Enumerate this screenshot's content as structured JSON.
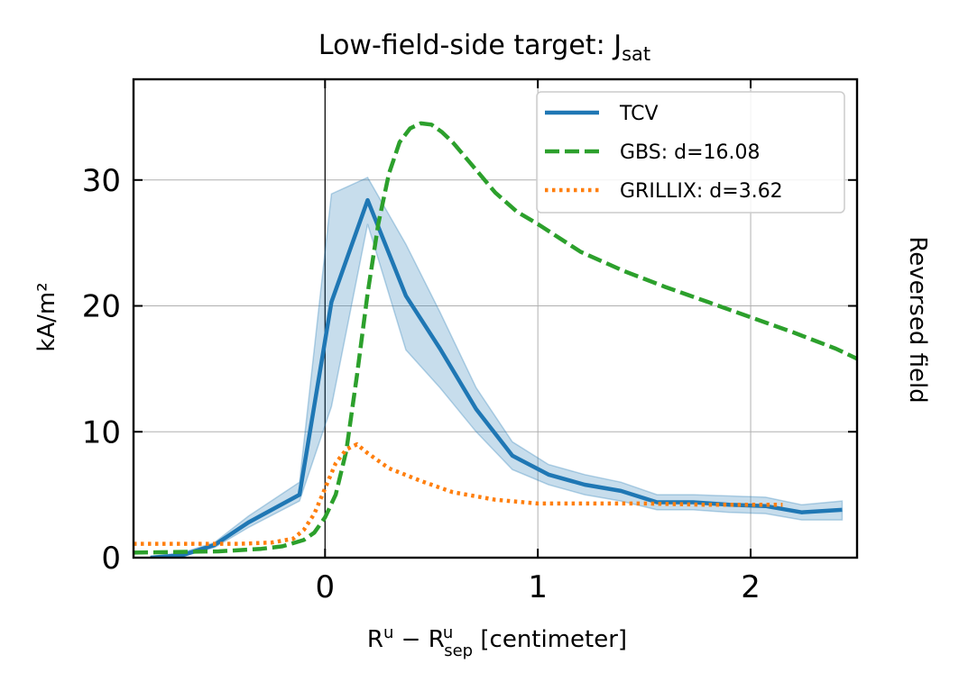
{
  "chart_data": {
    "type": "line",
    "title": "Low-field-side target: J",
    "title_sub": "sat",
    "xlabel": {
      "base1": "R",
      "sup1": "u",
      "minus": " − ",
      "base2": "R",
      "sup2": "u",
      "sub2": "sep",
      "rest": " [centimeter]"
    },
    "ylabel": "kA/m²",
    "side_label": "Reversed field",
    "xlim": [
      -0.9,
      2.5
    ],
    "ylim": [
      0,
      38
    ],
    "xticks": [
      0,
      1,
      2
    ],
    "yticks": [
      0,
      10,
      20,
      30
    ],
    "grid": true,
    "vline_x": 0,
    "legend_position": "top-right",
    "series": [
      {
        "name": "TCV",
        "style": "solid",
        "color": "#1f77b4",
        "x": [
          -0.82,
          -0.67,
          -0.52,
          -0.36,
          -0.12,
          0.03,
          0.2,
          0.38,
          0.54,
          0.71,
          0.88,
          1.05,
          1.22,
          1.39,
          1.56,
          1.73,
          1.9,
          2.07,
          2.24,
          2.43
        ],
        "y": [
          0.0,
          0.2,
          1.0,
          2.8,
          5.0,
          20.3,
          28.4,
          20.8,
          16.6,
          11.8,
          8.1,
          6.6,
          5.8,
          5.3,
          4.4,
          4.4,
          4.2,
          4.1,
          3.6,
          3.8
        ],
        "band_lower": [
          0.0,
          0.1,
          0.8,
          2.4,
          4.5,
          12.0,
          26.5,
          16.5,
          13.5,
          10.0,
          7.0,
          5.8,
          5.0,
          4.5,
          3.8,
          3.8,
          3.6,
          3.5,
          3.0,
          3.0
        ],
        "band_upper": [
          0.1,
          0.4,
          1.2,
          3.3,
          6.0,
          28.9,
          30.2,
          24.9,
          19.5,
          13.5,
          9.2,
          7.4,
          6.6,
          6.0,
          5.0,
          5.0,
          4.9,
          4.8,
          4.2,
          4.5
        ]
      },
      {
        "name": "GBS: d=16.08",
        "style": "dashed",
        "color": "#2ca02c",
        "x": [
          -0.9,
          -0.5,
          -0.3,
          -0.2,
          -0.1,
          -0.05,
          0.0,
          0.05,
          0.1,
          0.15,
          0.2,
          0.25,
          0.3,
          0.35,
          0.4,
          0.45,
          0.5,
          0.55,
          0.6,
          0.7,
          0.8,
          0.9,
          1.0,
          1.2,
          1.4,
          1.6,
          1.8,
          2.0,
          2.2,
          2.4,
          2.5
        ],
        "y": [
          0.4,
          0.5,
          0.7,
          0.9,
          1.4,
          2.0,
          3.2,
          5.0,
          8.5,
          14.5,
          21.0,
          26.5,
          30.5,
          33.0,
          34.1,
          34.5,
          34.4,
          33.8,
          33.0,
          31.0,
          29.0,
          27.5,
          26.5,
          24.3,
          22.8,
          21.5,
          20.3,
          19.1,
          17.9,
          16.6,
          15.8
        ]
      },
      {
        "name": "GRILLIX: d=3.62",
        "style": "dotted",
        "color": "#ff7f0e",
        "x": [
          -0.9,
          -0.6,
          -0.4,
          -0.25,
          -0.15,
          -0.1,
          -0.05,
          0.0,
          0.05,
          0.1,
          0.15,
          0.2,
          0.3,
          0.45,
          0.6,
          0.8,
          1.0,
          1.2,
          1.5,
          1.8,
          2.0,
          2.15
        ],
        "y": [
          1.1,
          1.1,
          1.1,
          1.2,
          1.5,
          2.2,
          3.5,
          5.5,
          7.5,
          8.6,
          9.0,
          8.3,
          7.1,
          6.1,
          5.2,
          4.6,
          4.3,
          4.3,
          4.3,
          4.2,
          4.2,
          4.2
        ]
      }
    ]
  }
}
